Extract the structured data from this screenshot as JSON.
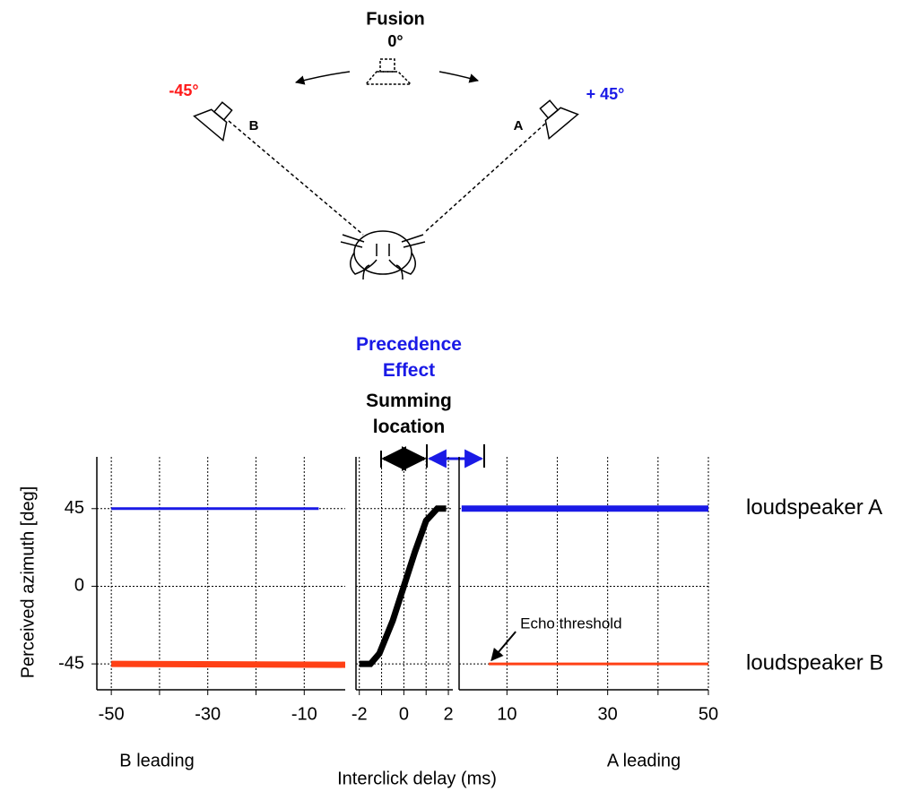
{
  "diagram": {
    "fusion": "Fusion",
    "center_angle": "0°",
    "left_angle": "-45°",
    "right_angle": "+ 45°",
    "left_speaker": "B",
    "right_speaker": "A"
  },
  "chart_data": [
    {
      "type": "line",
      "ylabel": "Perceived  azimuth [deg]",
      "note": "B leading",
      "xlim": [
        -53,
        -1.5
      ],
      "ylim": [
        -60,
        75
      ],
      "xticks": [
        -50,
        -30,
        -10
      ],
      "xminorticks": [
        -40,
        -20
      ],
      "yticks": [
        -45,
        0,
        45
      ],
      "show_ytick_labels": true,
      "series": [
        {
          "color": "#1a1ae6",
          "x": [
            -50,
            -7
          ],
          "values": [
            45,
            45
          ]
        },
        {
          "color": "#ff4015",
          "x": [
            -50,
            -1.5
          ],
          "values": [
            -45,
            -45.5
          ]
        }
      ]
    },
    {
      "type": "line",
      "xlabel": "Interclick delay (ms)",
      "precedence": "Precedence Effect",
      "summing": "Summing location",
      "xlim": [
        -2.15,
        2.2
      ],
      "ylim": [
        -60,
        75
      ],
      "xticks": [
        -2,
        0,
        2
      ],
      "xminorticks": [
        -1,
        1
      ],
      "yticks": [
        -45,
        0,
        45
      ],
      "show_ytick_labels": false,
      "series": [
        {
          "color": "#000000",
          "x": [
            -2,
            -1.5,
            -1.1,
            -0.5,
            0,
            0.5,
            1,
            1.5,
            1.9
          ],
          "values": [
            -45,
            -45,
            -39,
            -20,
            0,
            20,
            38,
            45,
            45
          ]
        }
      ]
    },
    {
      "type": "line",
      "note": "A leading",
      "xlim": [
        0.5,
        50
      ],
      "ylim": [
        -60,
        75
      ],
      "xticks": [
        10,
        30,
        50
      ],
      "xminorticks": [
        20,
        40
      ],
      "yticks": [
        -45,
        0,
        45
      ],
      "show_ytick_labels": false,
      "right_labels": [
        {
          "value": 45,
          "label": "loudspeaker A"
        },
        {
          "value": -45,
          "label": "loudspeaker B"
        }
      ],
      "annotation": {
        "text": "Echo threshold",
        "x": 6.4,
        "y": -45
      },
      "series": [
        {
          "color": "#1a1ae6",
          "x": [
            1,
            50
          ],
          "values": [
            45,
            45
          ]
        },
        {
          "color": "#ff4015",
          "x": [
            6.4,
            50
          ],
          "values": [
            -45,
            -45
          ]
        }
      ]
    }
  ]
}
